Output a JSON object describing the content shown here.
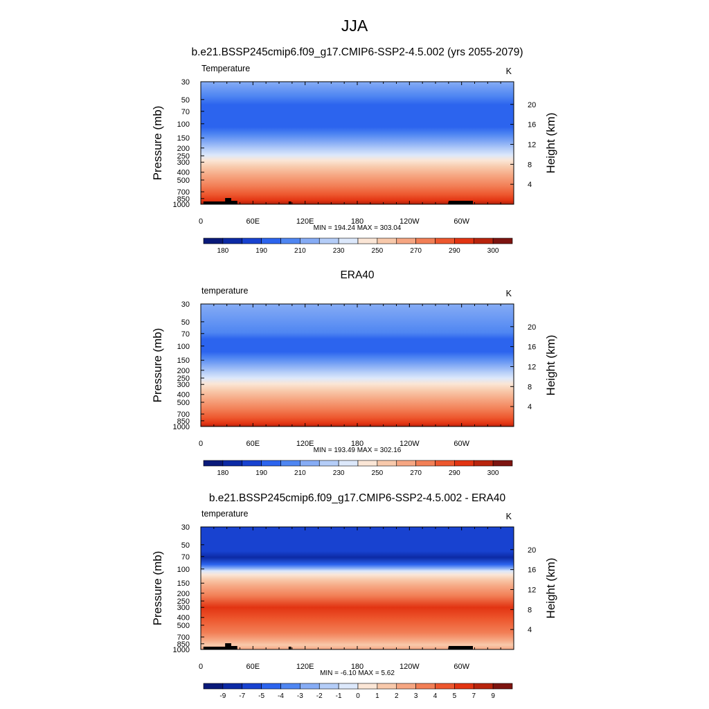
{
  "page_title": "JJA",
  "chart_data": [
    {
      "type": "heatmap",
      "title": "b.e21.BSSP245cmip6.f09_g17.CMIP6-SSP2-4.5.002 (yrs 2055-2079)",
      "left_label": "Temperature",
      "units": "K",
      "ylabel": "Pressure (mb)",
      "ylabel_right": "Height (km)",
      "x_ticks": [
        "0",
        "60E",
        "120E",
        "180",
        "120W",
        "60W"
      ],
      "x_tick_values": [
        0,
        60,
        120,
        180,
        240,
        300
      ],
      "xlim": [
        0,
        360
      ],
      "y_ticks": [
        "30",
        "50",
        "70",
        "100",
        "150",
        "200",
        "250",
        "300",
        "400",
        "500",
        "700",
        "850",
        "1000"
      ],
      "y_tick_values": [
        30,
        50,
        70,
        100,
        150,
        200,
        250,
        300,
        400,
        500,
        700,
        850,
        1000
      ],
      "ylim": [
        30,
        1000
      ],
      "height_ticks": [
        "4",
        "8",
        "12",
        "16",
        "20"
      ],
      "height_tick_values": [
        4,
        8,
        12,
        16,
        20
      ],
      "stats": "MIN = 194.24  MAX = 303.04",
      "colorbar_labels": [
        "180",
        "190",
        "210",
        "230",
        "250",
        "270",
        "290",
        "300"
      ],
      "colorbar_label_boxes": [
        1,
        3,
        5,
        7,
        9,
        11,
        13,
        15
      ],
      "colorbar_colors": [
        "#0a1a7a",
        "#0c2aa5",
        "#1842d0",
        "#2c64ee",
        "#4f86f2",
        "#86acf5",
        "#b4cdf8",
        "#dce8fb",
        "#fbe6d6",
        "#f8c9ab",
        "#f6a682",
        "#f27f56",
        "#ed572e",
        "#e23412",
        "#b8240d",
        "#7d1410"
      ],
      "field_levels": [
        {
          "p": 30,
          "color": "#86acf5"
        },
        {
          "p": 45,
          "color": "#4f86f2"
        },
        {
          "p": 58,
          "color": "#2c64ee"
        },
        {
          "p": 110,
          "color": "#2c64ee"
        },
        {
          "p": 135,
          "color": "#4f86f2"
        },
        {
          "p": 170,
          "color": "#86acf5"
        },
        {
          "p": 205,
          "color": "#b4cdf8"
        },
        {
          "p": 245,
          "color": "#dce8fb"
        },
        {
          "p": 285,
          "color": "#fbe6d6"
        },
        {
          "p": 345,
          "color": "#f8c9ab"
        },
        {
          "p": 440,
          "color": "#f6a682"
        },
        {
          "p": 590,
          "color": "#f27f56"
        },
        {
          "p": 760,
          "color": "#ed572e"
        },
        {
          "p": 900,
          "color": "#e23412"
        },
        {
          "p": 975,
          "color": "#b8240d"
        },
        {
          "p": 1000,
          "color": "#b8240d"
        }
      ],
      "topography": true
    },
    {
      "type": "heatmap",
      "title": "ERA40",
      "left_label": "temperature",
      "units": "K",
      "ylabel": "Pressure (mb)",
      "ylabel_right": "Height (km)",
      "x_ticks": [
        "0",
        "60E",
        "120E",
        "180",
        "120W",
        "60W"
      ],
      "x_tick_values": [
        0,
        60,
        120,
        180,
        240,
        300
      ],
      "xlim": [
        0,
        360
      ],
      "y_ticks": [
        "30",
        "50",
        "70",
        "100",
        "150",
        "200",
        "250",
        "300",
        "400",
        "500",
        "700",
        "850",
        "1000"
      ],
      "y_tick_values": [
        30,
        50,
        70,
        100,
        150,
        200,
        250,
        300,
        400,
        500,
        700,
        850,
        1000
      ],
      "ylim": [
        30,
        1000
      ],
      "height_ticks": [
        "4",
        "8",
        "12",
        "16",
        "20"
      ],
      "height_tick_values": [
        4,
        8,
        12,
        16,
        20
      ],
      "stats": "MIN = 193.49  MAX = 302.16",
      "colorbar_labels": [
        "180",
        "190",
        "210",
        "230",
        "250",
        "270",
        "290",
        "300"
      ],
      "colorbar_label_boxes": [
        1,
        3,
        5,
        7,
        9,
        11,
        13,
        15
      ],
      "colorbar_colors": [
        "#0a1a7a",
        "#0c2aa5",
        "#1842d0",
        "#2c64ee",
        "#4f86f2",
        "#86acf5",
        "#b4cdf8",
        "#dce8fb",
        "#fbe6d6",
        "#f8c9ab",
        "#f6a682",
        "#f27f56",
        "#ed572e",
        "#e23412",
        "#b8240d",
        "#7d1410"
      ],
      "field_levels": [
        {
          "p": 30,
          "color": "#86acf5"
        },
        {
          "p": 68,
          "color": "#4f86f2"
        },
        {
          "p": 82,
          "color": "#2c64ee"
        },
        {
          "p": 118,
          "color": "#2c64ee"
        },
        {
          "p": 140,
          "color": "#4f86f2"
        },
        {
          "p": 175,
          "color": "#86acf5"
        },
        {
          "p": 210,
          "color": "#b4cdf8"
        },
        {
          "p": 250,
          "color": "#dce8fb"
        },
        {
          "p": 295,
          "color": "#fbe6d6"
        },
        {
          "p": 360,
          "color": "#f8c9ab"
        },
        {
          "p": 460,
          "color": "#f6a682"
        },
        {
          "p": 610,
          "color": "#f27f56"
        },
        {
          "p": 780,
          "color": "#ed572e"
        },
        {
          "p": 920,
          "color": "#e23412"
        },
        {
          "p": 985,
          "color": "#b8240d"
        },
        {
          "p": 1000,
          "color": "#b8240d"
        }
      ],
      "topography": false
    },
    {
      "type": "heatmap",
      "title": "b.e21.BSSP245cmip6.f09_g17.CMIP6-SSP2-4.5.002 - ERA40",
      "left_label": "temperature",
      "units": "K",
      "ylabel": "Pressure (mb)",
      "ylabel_right": "Height (km)",
      "x_ticks": [
        "0",
        "60E",
        "120E",
        "180",
        "120W",
        "60W"
      ],
      "x_tick_values": [
        0,
        60,
        120,
        180,
        240,
        300
      ],
      "xlim": [
        0,
        360
      ],
      "y_ticks": [
        "30",
        "50",
        "70",
        "100",
        "150",
        "200",
        "250",
        "300",
        "400",
        "500",
        "700",
        "850",
        "1000"
      ],
      "y_tick_values": [
        30,
        50,
        70,
        100,
        150,
        200,
        250,
        300,
        400,
        500,
        700,
        850,
        1000
      ],
      "ylim": [
        30,
        1000
      ],
      "height_ticks": [
        "4",
        "8",
        "12",
        "16",
        "20"
      ],
      "height_tick_values": [
        4,
        8,
        12,
        16,
        20
      ],
      "stats": "MIN =  -6.10  MAX =   5.62",
      "colorbar_labels": [
        "-9",
        "-7",
        "-5",
        "-4",
        "-3",
        "-2",
        "-1",
        "0",
        "1",
        "2",
        "3",
        "4",
        "5",
        "7",
        "9"
      ],
      "colorbar_label_boxes": [
        1,
        2,
        3,
        4,
        5,
        6,
        7,
        8,
        9,
        10,
        11,
        12,
        13,
        14,
        15
      ],
      "colorbar_colors": [
        "#0a1a7a",
        "#0c2aa5",
        "#1842d0",
        "#2c64ee",
        "#4f86f2",
        "#86acf5",
        "#b4cdf8",
        "#dce8fb",
        "#fbe6d6",
        "#f8c9ab",
        "#f6a682",
        "#f27f56",
        "#ed572e",
        "#e23412",
        "#b8240d",
        "#7d1410"
      ],
      "field_levels": [
        {
          "p": 30,
          "color": "#1842d0"
        },
        {
          "p": 60,
          "color": "#1842d0"
        },
        {
          "p": 72,
          "color": "#0c2aa5"
        },
        {
          "p": 88,
          "color": "#2c64ee"
        },
        {
          "p": 98,
          "color": "#86acf5"
        },
        {
          "p": 106,
          "color": "#dce8fb"
        },
        {
          "p": 118,
          "color": "#fbe6d6"
        },
        {
          "p": 135,
          "color": "#f8c9ab"
        },
        {
          "p": 165,
          "color": "#f6a682"
        },
        {
          "p": 215,
          "color": "#f27f56"
        },
        {
          "p": 300,
          "color": "#e23412"
        },
        {
          "p": 420,
          "color": "#ed572e"
        },
        {
          "p": 620,
          "color": "#f27f56"
        },
        {
          "p": 760,
          "color": "#f6a682"
        },
        {
          "p": 880,
          "color": "#f8c9ab"
        },
        {
          "p": 1000,
          "color": "#f6a682"
        }
      ],
      "topography": true
    }
  ]
}
